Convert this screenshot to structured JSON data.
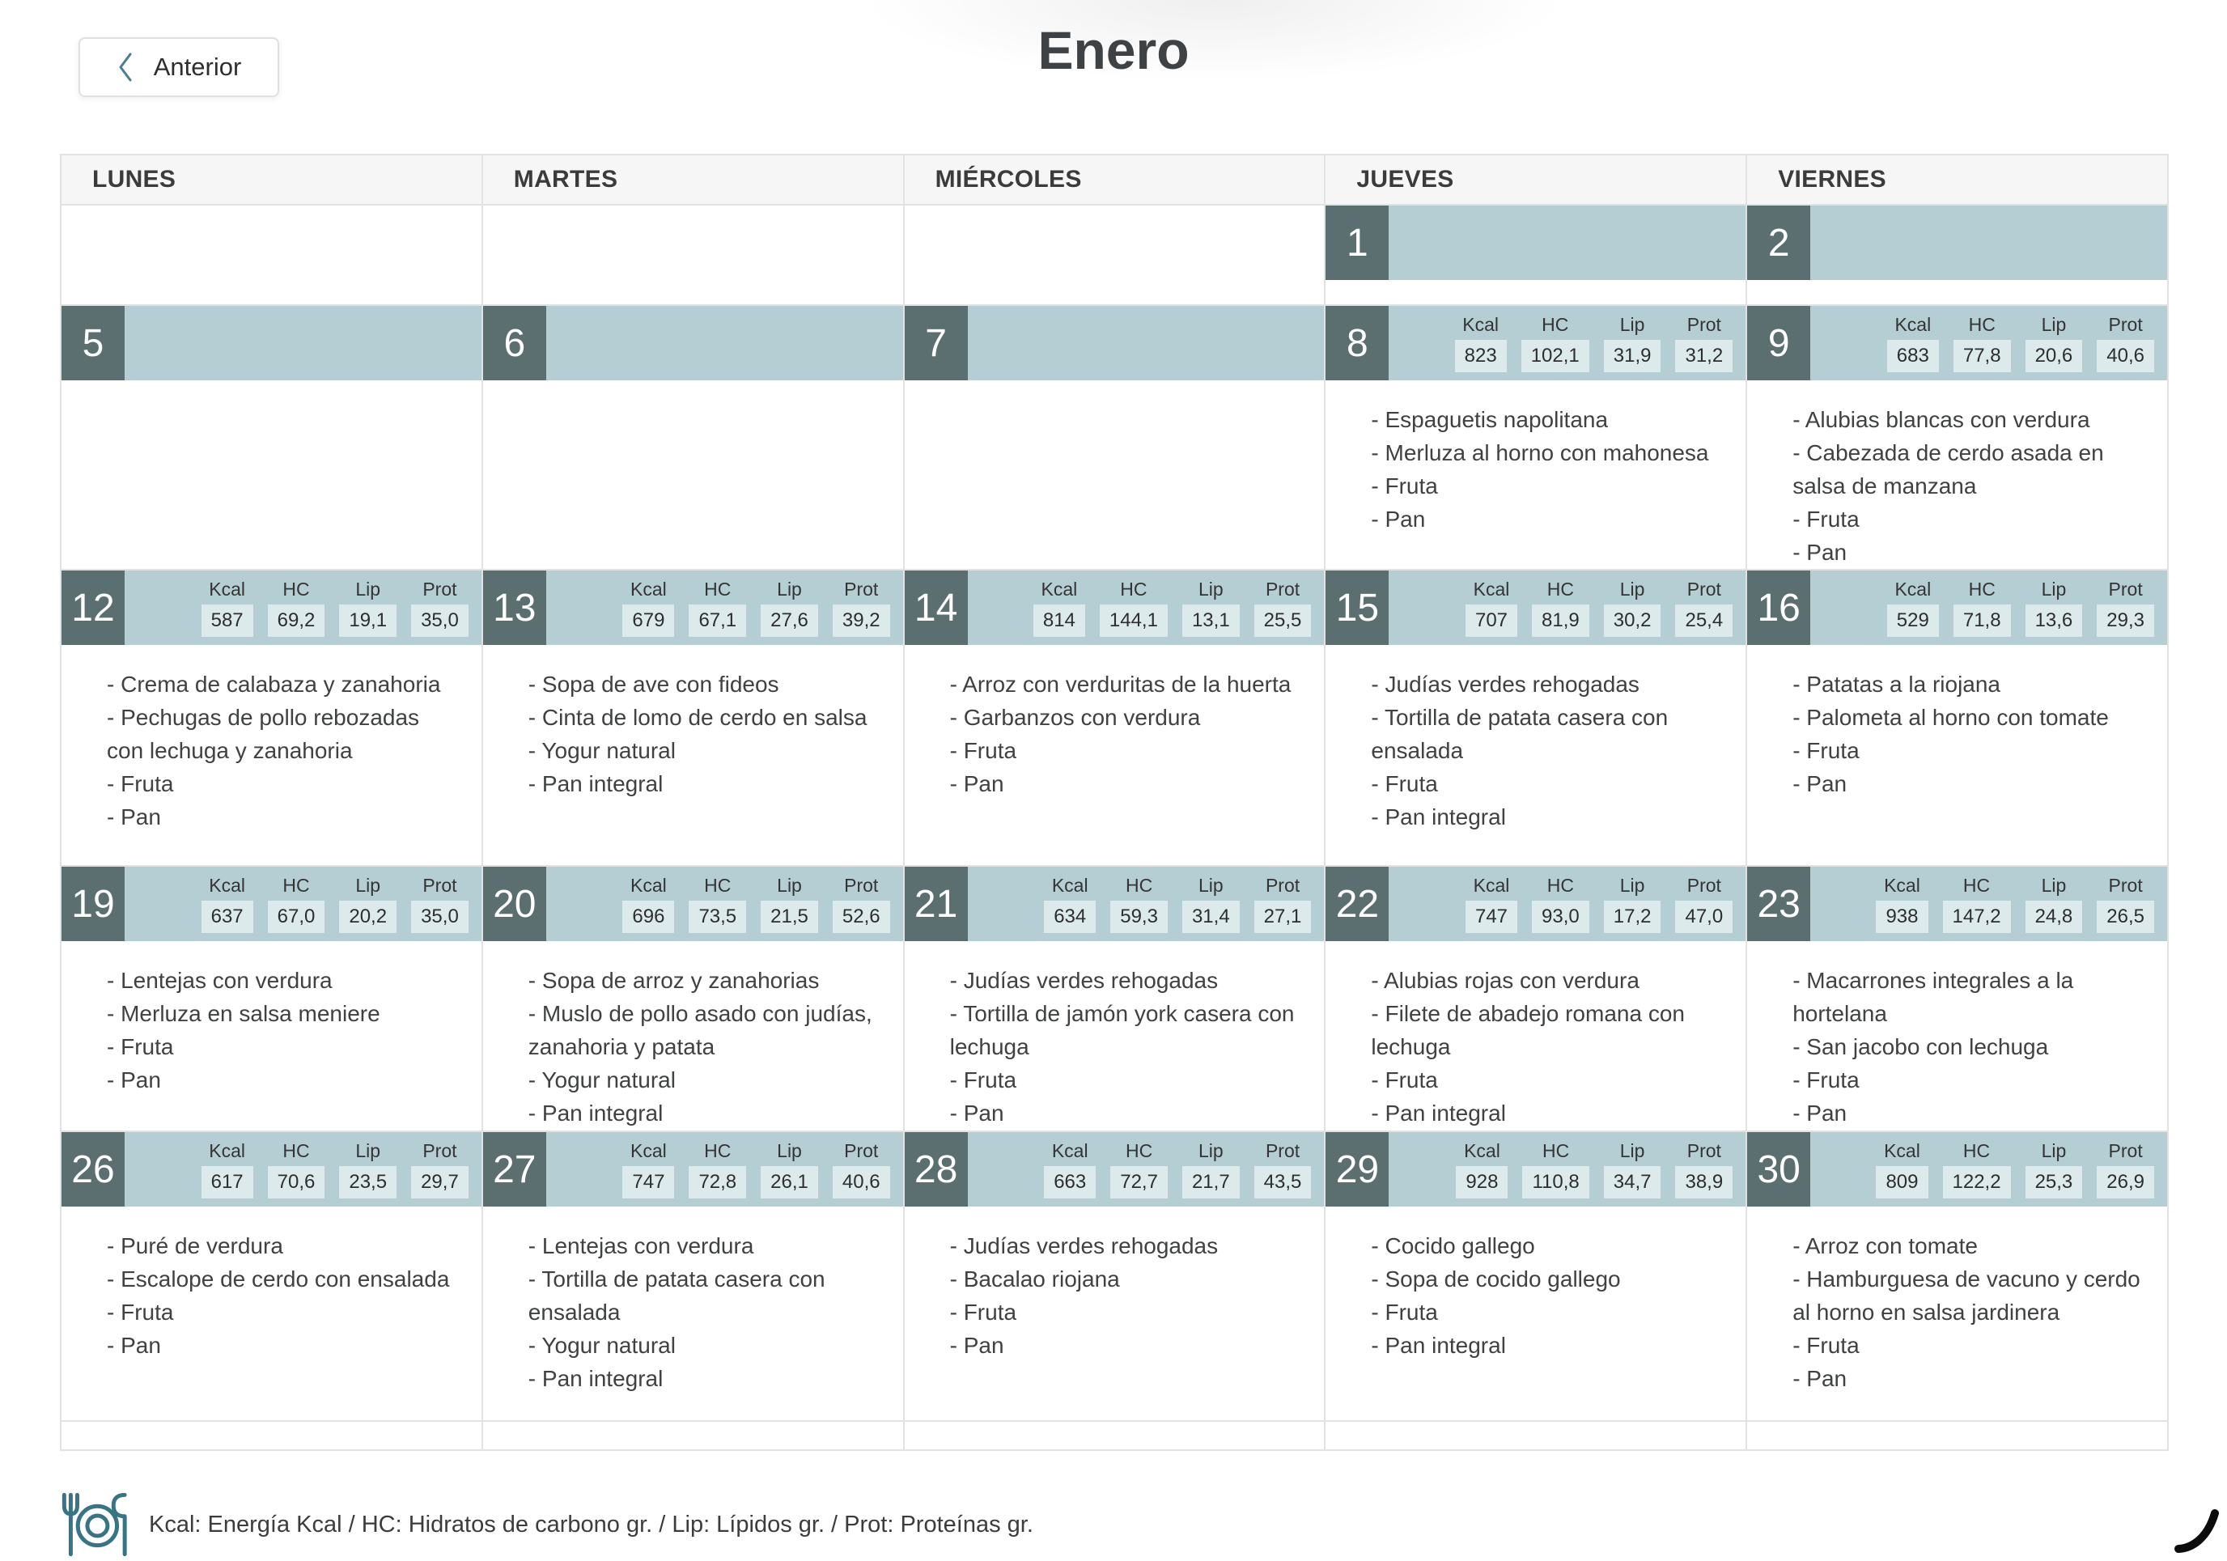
{
  "header": {
    "back_label": "Anterior",
    "back_icon": "chevron-left",
    "title": "Enero"
  },
  "calendar": {
    "weekdays": [
      "LUNES",
      "MARTES",
      "MIÉRCOLES",
      "JUEVES",
      "VIERNES"
    ],
    "stats_labels": [
      "Kcal",
      "HC",
      "Lip",
      "Prot"
    ],
    "weeks": [
      [
        null,
        null,
        null,
        {
          "day": "1"
        },
        {
          "day": "2"
        }
      ],
      [
        {
          "day": "5"
        },
        {
          "day": "6"
        },
        {
          "day": "7"
        },
        {
          "day": "8",
          "stats": [
            "823",
            "102,1",
            "31,9",
            "31,2"
          ],
          "meals": [
            "- Espaguetis napolitana",
            "- Merluza al horno con mahonesa",
            "- Fruta",
            "- Pan"
          ]
        },
        {
          "day": "9",
          "stats": [
            "683",
            "77,8",
            "20,6",
            "40,6"
          ],
          "meals": [
            "- Alubias blancas con verdura",
            "- Cabezada de cerdo asada en salsa de manzana",
            "- Fruta",
            "- Pan"
          ]
        }
      ],
      [
        {
          "day": "12",
          "stats": [
            "587",
            "69,2",
            "19,1",
            "35,0"
          ],
          "meals": [
            "- Crema de calabaza y zanahoria",
            "- Pechugas de pollo rebozadas con lechuga y zanahoria",
            "- Fruta",
            "- Pan"
          ]
        },
        {
          "day": "13",
          "stats": [
            "679",
            "67,1",
            "27,6",
            "39,2"
          ],
          "meals": [
            "- Sopa de ave con fideos",
            "- Cinta de lomo de cerdo en salsa",
            "- Yogur natural",
            "- Pan integral"
          ]
        },
        {
          "day": "14",
          "stats": [
            "814",
            "144,1",
            "13,1",
            "25,5"
          ],
          "meals": [
            "- Arroz con verduritas de la huerta",
            "- Garbanzos con verdura",
            "- Fruta",
            "- Pan"
          ]
        },
        {
          "day": "15",
          "stats": [
            "707",
            "81,9",
            "30,2",
            "25,4"
          ],
          "meals": [
            "- Judías verdes rehogadas",
            "- Tortilla de patata casera con ensalada",
            "- Fruta",
            "- Pan integral"
          ]
        },
        {
          "day": "16",
          "stats": [
            "529",
            "71,8",
            "13,6",
            "29,3"
          ],
          "meals": [
            "- Patatas a la riojana",
            "- Palometa al horno con tomate",
            "- Fruta",
            "- Pan"
          ]
        }
      ],
      [
        {
          "day": "19",
          "stats": [
            "637",
            "67,0",
            "20,2",
            "35,0"
          ],
          "meals": [
            "- Lentejas con verdura",
            "- Merluza en salsa meniere",
            "- Fruta",
            "- Pan"
          ]
        },
        {
          "day": "20",
          "stats": [
            "696",
            "73,5",
            "21,5",
            "52,6"
          ],
          "meals": [
            "- Sopa de arroz y zanahorias",
            "- Muslo de pollo asado con judías, zanahoria y patata",
            "- Yogur natural",
            "- Pan integral"
          ]
        },
        {
          "day": "21",
          "stats": [
            "634",
            "59,3",
            "31,4",
            "27,1"
          ],
          "meals": [
            "- Judías verdes rehogadas",
            "- Tortilla de jamón york casera con lechuga",
            "- Fruta",
            "- Pan"
          ]
        },
        {
          "day": "22",
          "stats": [
            "747",
            "93,0",
            "17,2",
            "47,0"
          ],
          "meals": [
            "- Alubias rojas con verdura",
            "- Filete de abadejo romana con lechuga",
            "- Fruta",
            "- Pan integral"
          ]
        },
        {
          "day": "23",
          "stats": [
            "938",
            "147,2",
            "24,8",
            "26,5"
          ],
          "meals": [
            "- Macarrones integrales a la hortelana",
            "- San jacobo con lechuga",
            "- Fruta",
            "- Pan"
          ]
        }
      ],
      [
        {
          "day": "26",
          "stats": [
            "617",
            "70,6",
            "23,5",
            "29,7"
          ],
          "meals": [
            "- Puré de verdura",
            "- Escalope de cerdo con ensalada",
            "- Fruta",
            "- Pan"
          ]
        },
        {
          "day": "27",
          "stats": [
            "747",
            "72,8",
            "26,1",
            "40,6"
          ],
          "meals": [
            "- Lentejas con verdura",
            "- Tortilla de patata casera con ensalada",
            "- Yogur natural",
            "- Pan integral"
          ]
        },
        {
          "day": "28",
          "stats": [
            "663",
            "72,7",
            "21,7",
            "43,5"
          ],
          "meals": [
            "- Judías verdes rehogadas",
            "- Bacalao riojana",
            "- Fruta",
            "- Pan"
          ]
        },
        {
          "day": "29",
          "stats": [
            "928",
            "110,8",
            "34,7",
            "38,9"
          ],
          "meals": [
            "- Cocido gallego",
            "- Sopa de cocido gallego",
            "- Fruta",
            "- Pan integral"
          ]
        },
        {
          "day": "30",
          "stats": [
            "809",
            "122,2",
            "25,3",
            "26,9"
          ],
          "meals": [
            "- Arroz con tomate",
            "- Hamburguesa de vacuno y cerdo al horno en salsa jardinera",
            "- Fruta",
            "- Pan"
          ]
        }
      ],
      [
        null,
        null,
        null,
        null,
        null
      ]
    ]
  },
  "footer": {
    "icon": "cutlery",
    "legend": "Kcal: Energía Kcal / HC: Hidratos de carbono gr. / Lip: Lípidos gr. / Prot: Proteínas gr."
  },
  "misc": {
    "corner_icon": "loading-arc"
  },
  "colors": {
    "day_bar": "#b5ced3",
    "day_number_bg": "#5b6e70",
    "stat_chip_bg": "#dceaec",
    "weekday_header_bg": "#f6f6f6",
    "grid_border": "#e2e2e2",
    "accent_teal": "#377484",
    "chevron_blue": "#4b7d94"
  }
}
